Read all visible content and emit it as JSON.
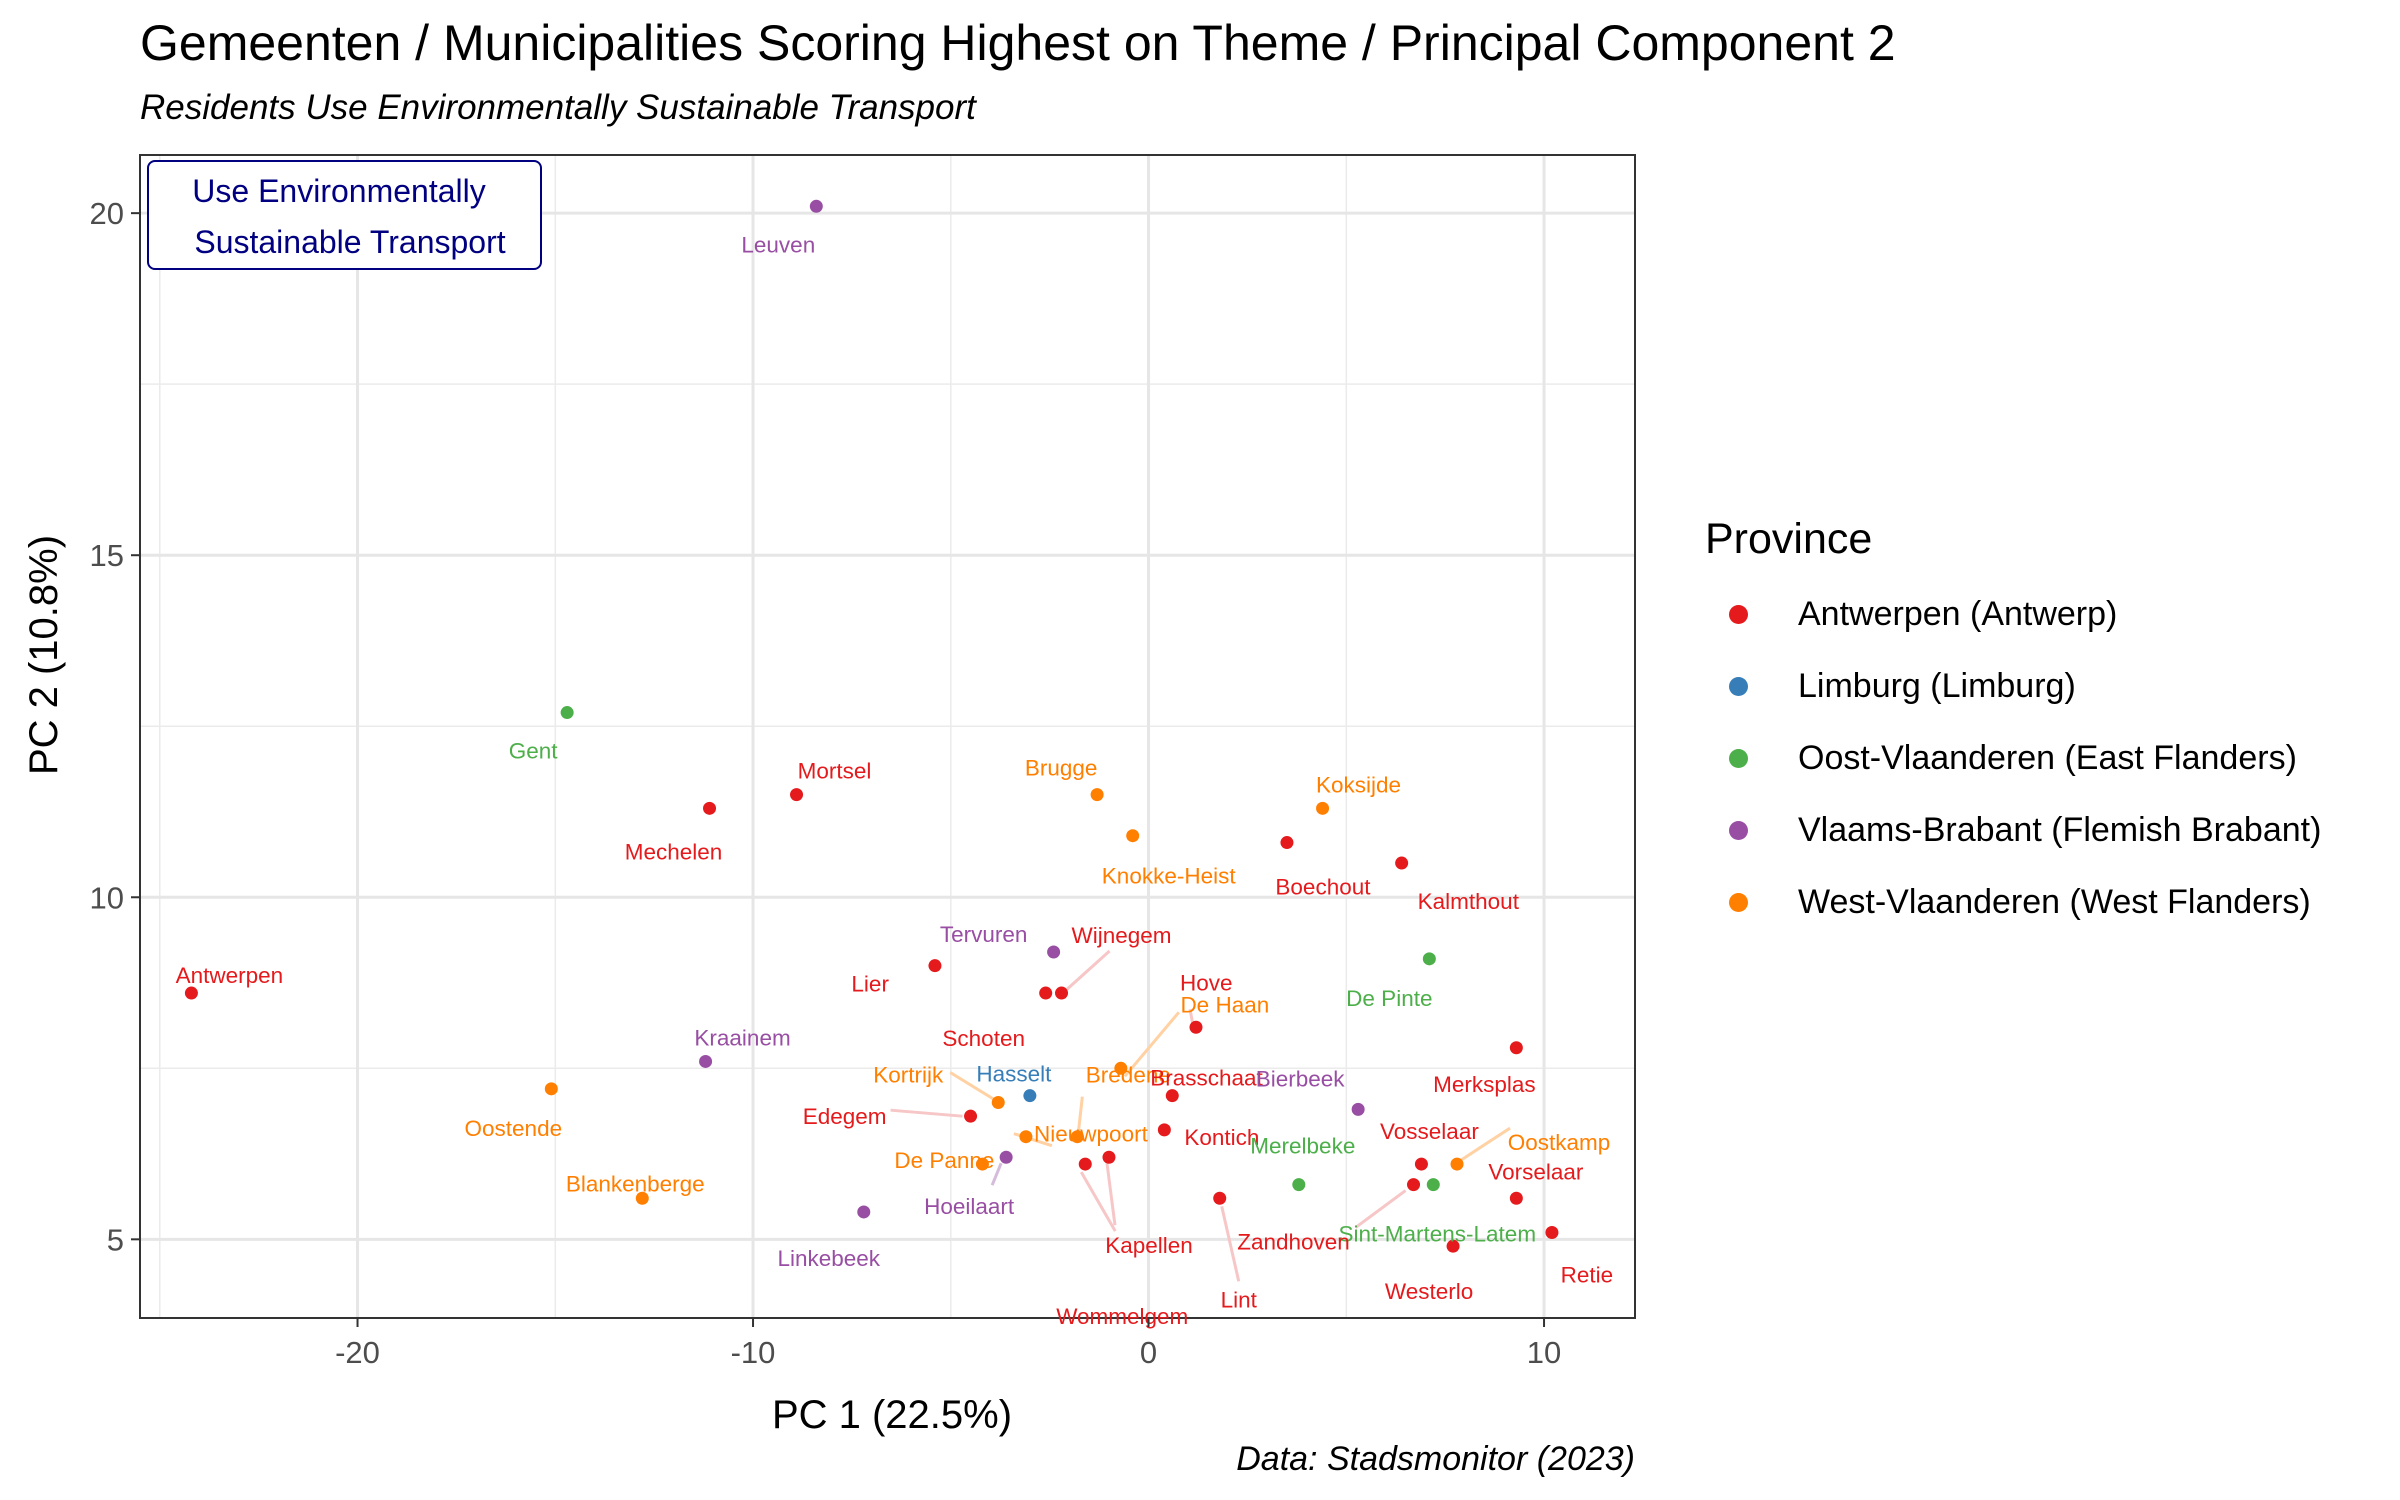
{
  "chart_data": {
    "type": "scatter",
    "title": "Gemeenten / Municipalities Scoring Highest on Theme / Principal Component 2",
    "subtitle": "Residents Use Environmentally Sustainable Transport",
    "caption": "Data: Stadsmonitor (2023)",
    "xlabel": "PC 1 (22.5%)",
    "ylabel": "PC 2 (10.8%)",
    "xlim": [
      -25.5,
      12.3
    ],
    "ylim": [
      3.85,
      20.85
    ],
    "xticks": [
      -20,
      -10,
      0,
      10
    ],
    "xtick_labels": [
      "-20",
      "-10",
      "0",
      "10"
    ],
    "yticks": [
      5,
      10,
      15,
      20
    ],
    "ytick_labels": [
      "5",
      "10",
      "15",
      "20"
    ],
    "grid": true,
    "annotation": {
      "lines": [
        "Use Environmentally",
        "Sustainable Transport"
      ],
      "color": "#000080"
    },
    "legend_title": "Province",
    "legend_position": "right",
    "provinces": [
      {
        "name": "Antwerpen (Antwerp)",
        "color": "#E41A1C"
      },
      {
        "name": "Limburg (Limburg)",
        "color": "#377EB8"
      },
      {
        "name": "Oost-Vlaanderen (East Flanders)",
        "color": "#4DAF4A"
      },
      {
        "name": "Vlaams-Brabant (Flemish Brabant)",
        "color": "#984EA3"
      },
      {
        "name": "West-Vlaanderen (West Flanders)",
        "color": "#FF7F00"
      }
    ],
    "points": [
      {
        "label": "Leuven",
        "x": -8.4,
        "y": 20.1,
        "province": 3
      },
      {
        "label": "Gent",
        "x": -14.7,
        "y": 12.7,
        "province": 2
      },
      {
        "label": "Mortsel",
        "x": -8.9,
        "y": 11.5,
        "province": 0
      },
      {
        "label": "Mechelen",
        "x": -11.1,
        "y": 11.3,
        "province": 0
      },
      {
        "label": "Brugge",
        "x": -1.3,
        "y": 11.5,
        "province": 4
      },
      {
        "label": "Knokke-Heist",
        "x": -0.4,
        "y": 10.9,
        "province": 4
      },
      {
        "label": "Koksijde",
        "x": 4.4,
        "y": 11.3,
        "province": 4
      },
      {
        "label": "Boechout",
        "x": 3.5,
        "y": 10.8,
        "province": 0
      },
      {
        "label": "Kalmthout",
        "x": 6.4,
        "y": 10.5,
        "province": 0
      },
      {
        "label": "Antwerpen",
        "x": -24.2,
        "y": 8.6,
        "province": 0
      },
      {
        "label": "Tervuren",
        "x": -2.4,
        "y": 9.2,
        "province": 3
      },
      {
        "label": "Wijnegem",
        "x": -2.2,
        "y": 8.6,
        "province": 0
      },
      {
        "label": "Schoten",
        "x": -2.6,
        "y": 8.6,
        "province": 0
      },
      {
        "label": "Lier",
        "x": -5.4,
        "y": 9.0,
        "province": 0
      },
      {
        "label": "Hove",
        "x": 1.2,
        "y": 8.1,
        "province": 0
      },
      {
        "label": "De Pinte",
        "x": 7.1,
        "y": 9.1,
        "province": 2
      },
      {
        "label": "De Haan",
        "x": -0.7,
        "y": 7.5,
        "province": 4
      },
      {
        "label": "Bredene",
        "x": -1.8,
        "y": 6.5,
        "province": 4
      },
      {
        "label": "Merksplas",
        "x": 9.3,
        "y": 7.8,
        "province": 0
      },
      {
        "label": "Kraainem",
        "x": -11.2,
        "y": 7.6,
        "province": 3
      },
      {
        "label": "Hasselt",
        "x": -3.0,
        "y": 7.1,
        "province": 1
      },
      {
        "label": "Kortrijk",
        "x": -3.8,
        "y": 7.0,
        "province": 4
      },
      {
        "label": "Brasschaat",
        "x": 0.6,
        "y": 7.1,
        "province": 0
      },
      {
        "label": "Bierbeek",
        "x": 5.3,
        "y": 6.9,
        "province": 3
      },
      {
        "label": "Oostende",
        "x": -15.1,
        "y": 7.2,
        "province": 4
      },
      {
        "label": "Edegem",
        "x": -4.5,
        "y": 6.8,
        "province": 0
      },
      {
        "label": "Nieuwpoort",
        "x": -3.1,
        "y": 6.5,
        "province": 4
      },
      {
        "label": "Kontich",
        "x": 0.4,
        "y": 6.6,
        "province": 0
      },
      {
        "label": "Vosselaar",
        "x": 6.9,
        "y": 6.1,
        "province": 0
      },
      {
        "label": "Oostkamp",
        "x": 7.8,
        "y": 6.1,
        "province": 4
      },
      {
        "label": "De Panne",
        "x": -4.2,
        "y": 6.1,
        "province": 4
      },
      {
        "label": "Hoeilaart",
        "x": -3.6,
        "y": 6.2,
        "province": 3
      },
      {
        "label": "Kapellen",
        "x": -1.0,
        "y": 6.2,
        "province": 0
      },
      {
        "label": "Wommelgem",
        "x": -1.6,
        "y": 6.1,
        "province": 0
      },
      {
        "label": "Merelbeke",
        "x": 3.8,
        "y": 5.8,
        "province": 2
      },
      {
        "label": "Sint-Martens-Latem",
        "x": 7.2,
        "y": 5.8,
        "province": 2
      },
      {
        "label": "Zandhoven",
        "x": 6.7,
        "y": 5.8,
        "province": 0
      },
      {
        "label": "Vorselaar",
        "x": 9.3,
        "y": 5.6,
        "province": 0
      },
      {
        "label": "Blankenberge",
        "x": -12.8,
        "y": 5.6,
        "province": 4
      },
      {
        "label": "Linkebeek",
        "x": -7.2,
        "y": 5.4,
        "province": 3
      },
      {
        "label": "Lint",
        "x": 1.8,
        "y": 5.6,
        "province": 0
      },
      {
        "label": "Westerlo",
        "x": 7.7,
        "y": 4.9,
        "province": 0
      },
      {
        "label": "Retie",
        "x": 10.2,
        "y": 5.1,
        "province": 0
      }
    ]
  }
}
